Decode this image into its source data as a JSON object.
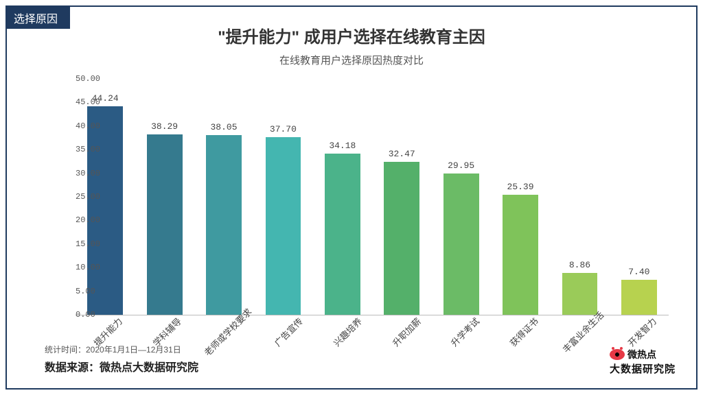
{
  "tag": "选择原因",
  "title": "\"提升能力\" 成用户选择在线教育主因",
  "subtitle": "在线教育用户选择原因热度对比",
  "chart": {
    "type": "bar",
    "ylim": [
      0,
      50
    ],
    "ytick_step": 5,
    "yticks": [
      "0.00",
      "5.00",
      "10.00",
      "15.00",
      "20.00",
      "25.00",
      "30.00",
      "35.00",
      "40.00",
      "45.00",
      "50.00"
    ],
    "y_tick_fontsize": 12,
    "value_label_fontsize": 13,
    "x_label_fontsize": 13,
    "x_label_rotation": -45,
    "bar_width_ratio": 0.6,
    "background_color": "#ffffff",
    "axis_color": "#bbbbbb",
    "categories": [
      "提升能力",
      "学科辅导",
      "老师或学校要求",
      "广告宣传",
      "兴趣培养",
      "升职加薪",
      "升学考试",
      "获得证书",
      "丰富业余生活",
      "开发智力"
    ],
    "values": [
      44.24,
      38.29,
      38.05,
      37.7,
      34.18,
      32.47,
      29.95,
      25.39,
      8.86,
      7.4
    ],
    "value_labels": [
      "44.24",
      "38.29",
      "38.05",
      "37.70",
      "34.18",
      "32.47",
      "29.95",
      "25.39",
      "8.86",
      "7.40"
    ],
    "bar_colors": [
      "#2b5b84",
      "#357a8e",
      "#3f9aa0",
      "#44b6b0",
      "#4bb38a",
      "#54b06a",
      "#6bbb66",
      "#7fc35a",
      "#9acb59",
      "#b7d24f"
    ]
  },
  "footer": {
    "stat_time": "统计时间：2020年1月1日—12月31日",
    "source": "数据来源：微热点大数据研究院"
  },
  "logo": {
    "brand1": "微热点",
    "brand2": "大数据研究院"
  },
  "frame_border_color": "#1f3a5f"
}
